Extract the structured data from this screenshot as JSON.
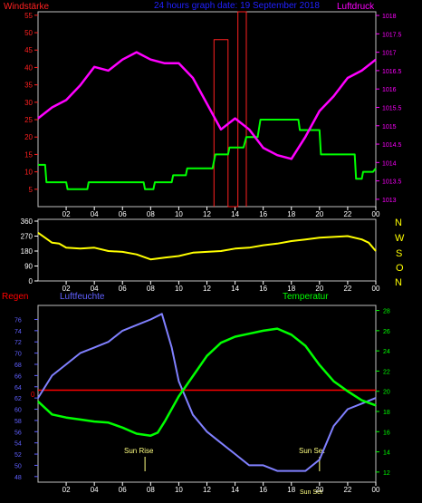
{
  "colors": {
    "wind_speed": "#00ff00",
    "wind_gust": "#ff2020",
    "pressure": "#ff00ff",
    "direction": "#ffff00",
    "humidity": "#8080ff",
    "temperature": "#00ff00",
    "rain": "#ff0000",
    "axis_blue": "#6060ff",
    "date_text": "#2020ff",
    "sun_text": "#ffff80",
    "grid": "#c0c0c0",
    "tick_white": "#ffffff"
  },
  "chart_data": [
    {
      "type": "line",
      "title_left": "Windstärke",
      "title_center": "24 hours graph date: 19 September 2018",
      "title_right": "Luftdruck",
      "x_ticks": [
        "02",
        "04",
        "06",
        "08",
        "10",
        "12",
        "14",
        "16",
        "18",
        "20",
        "22",
        "00"
      ],
      "y_left_ticks": [
        "5",
        "10",
        "15",
        "20",
        "25",
        "30",
        "35",
        "40",
        "45",
        "50",
        "55"
      ],
      "y_right_ticks": [
        "1013",
        "1013.5",
        "1014",
        "1014.5",
        "1015",
        "1015.5",
        "1016",
        "1016.5",
        "1017",
        "1017.5",
        "1018"
      ],
      "ylim_left": [
        0,
        56
      ],
      "ylim_right": [
        1012.8,
        1018.1
      ],
      "series": [
        {
          "key": "wind_speed",
          "x": [
            0,
            0.5,
            0.6,
            2,
            2.1,
            3.5,
            3.6,
            7.5,
            7.6,
            8.2,
            8.3,
            9.5,
            9.6,
            10.5,
            10.6,
            12.4,
            12.6,
            13.5,
            13.6,
            14.6,
            14.8,
            15.6,
            15.8,
            18.5,
            18.6,
            20,
            20.1,
            22.5,
            22.6,
            23,
            23.1,
            23.8,
            24
          ],
          "y": [
            12,
            12,
            7,
            7,
            5,
            5,
            7,
            7,
            5,
            5,
            7,
            7,
            9,
            9,
            11,
            11,
            15,
            15,
            17,
            17,
            20,
            20,
            25,
            25,
            22,
            22,
            15,
            15,
            8,
            8,
            10,
            10,
            11
          ]
        },
        {
          "key": "wind_gust",
          "x": [
            12.5,
            12.5,
            13.5,
            13.5,
            14.2,
            14.2,
            14.8,
            14.8
          ],
          "y": [
            0,
            48,
            48,
            0,
            0,
            56,
            56,
            0
          ]
        },
        {
          "key": "pressure",
          "x": [
            0,
            1,
            2,
            3,
            4,
            5,
            6,
            7,
            8,
            9,
            10,
            11,
            12,
            13,
            14,
            15,
            16,
            17,
            18,
            19,
            20,
            21,
            22,
            23,
            24
          ],
          "y": [
            1015.2,
            1015.5,
            1015.7,
            1016.1,
            1016.6,
            1016.5,
            1016.8,
            1017.0,
            1016.8,
            1016.7,
            1016.7,
            1016.3,
            1015.6,
            1014.9,
            1015.2,
            1014.9,
            1014.4,
            1014.2,
            1014.1,
            1014.7,
            1015.4,
            1015.8,
            1016.3,
            1016.5,
            1016.8
          ]
        }
      ]
    },
    {
      "type": "line",
      "x_ticks": [
        "02",
        "04",
        "06",
        "08",
        "10",
        "12",
        "14",
        "16",
        "18",
        "20",
        "22",
        "00"
      ],
      "y_ticks": [
        "360",
        "270",
        "180",
        "90",
        "0"
      ],
      "y_right_labels": [
        "N",
        "W",
        "S",
        "O",
        "N"
      ],
      "ylim": [
        0,
        360
      ],
      "series": [
        {
          "key": "direction",
          "x": [
            0,
            0.5,
            1,
            1.5,
            2,
            3,
            4,
            5,
            6,
            7,
            8,
            9,
            10,
            11,
            12,
            13,
            14,
            15,
            16,
            17,
            18,
            19,
            20,
            21,
            22,
            23,
            23.5,
            24
          ],
          "y": [
            290,
            260,
            230,
            225,
            200,
            195,
            200,
            180,
            175,
            160,
            130,
            140,
            150,
            170,
            175,
            180,
            195,
            200,
            215,
            225,
            240,
            250,
            260,
            265,
            270,
            250,
            230,
            180
          ]
        }
      ]
    },
    {
      "type": "line",
      "title_left": "Regen",
      "title_center": "Luftfeuchte",
      "title_right": "Temperatur",
      "x_ticks": [
        "02",
        "04",
        "06",
        "08",
        "10",
        "12",
        "14",
        "16",
        "18",
        "20",
        "22",
        "00"
      ],
      "y_left_ticks": [
        "48",
        "50",
        "52",
        "54",
        "56",
        "58",
        "60",
        "62",
        "64",
        "66",
        "68",
        "70",
        "72",
        "74",
        "76"
      ],
      "y_right_ticks": [
        "12",
        "14",
        "16",
        "18",
        "20",
        "22",
        "24",
        "26",
        "28"
      ],
      "rain_label": "0",
      "ylim_left": [
        47,
        78.5
      ],
      "ylim_right": [
        11,
        28.5
      ],
      "sun_rise_label": "Sun Rise",
      "sun_set_label": "Sun Set",
      "bottom_overlap_label": "Sun Set",
      "sun_rise_x": 7.6,
      "sun_set_x": 20,
      "series": [
        {
          "key": "humidity",
          "axis": "left",
          "x": [
            0,
            1,
            2,
            3,
            4,
            5,
            6,
            7,
            8,
            8.8,
            9.5,
            10,
            11,
            12,
            13,
            14,
            15,
            16,
            17,
            18,
            19,
            20,
            21,
            22,
            23,
            24
          ],
          "y": [
            62,
            66,
            68,
            70,
            71,
            72,
            74,
            75,
            76,
            77,
            71,
            65,
            59,
            56,
            54,
            52,
            50,
            50,
            49,
            49,
            49,
            51,
            57,
            60,
            61,
            62
          ]
        },
        {
          "key": "temperature",
          "axis": "right",
          "x": [
            0,
            1,
            2,
            3,
            4,
            5,
            6,
            7,
            8,
            8.5,
            9,
            10,
            11,
            12,
            13,
            14,
            15,
            16,
            17,
            18,
            19,
            20,
            21,
            22,
            23,
            24
          ],
          "y": [
            19,
            17.7,
            17.4,
            17.2,
            17.0,
            16.9,
            16.4,
            15.8,
            15.6,
            15.9,
            17.0,
            19.5,
            21.5,
            23.5,
            24.8,
            25.4,
            25.7,
            26.0,
            26.2,
            25.6,
            24.5,
            22.6,
            21.0,
            20.0,
            19.1,
            18.6
          ]
        },
        {
          "key": "rain",
          "axis": "rain",
          "x": [
            0,
            24
          ],
          "y": [
            0,
            0
          ]
        }
      ]
    }
  ]
}
